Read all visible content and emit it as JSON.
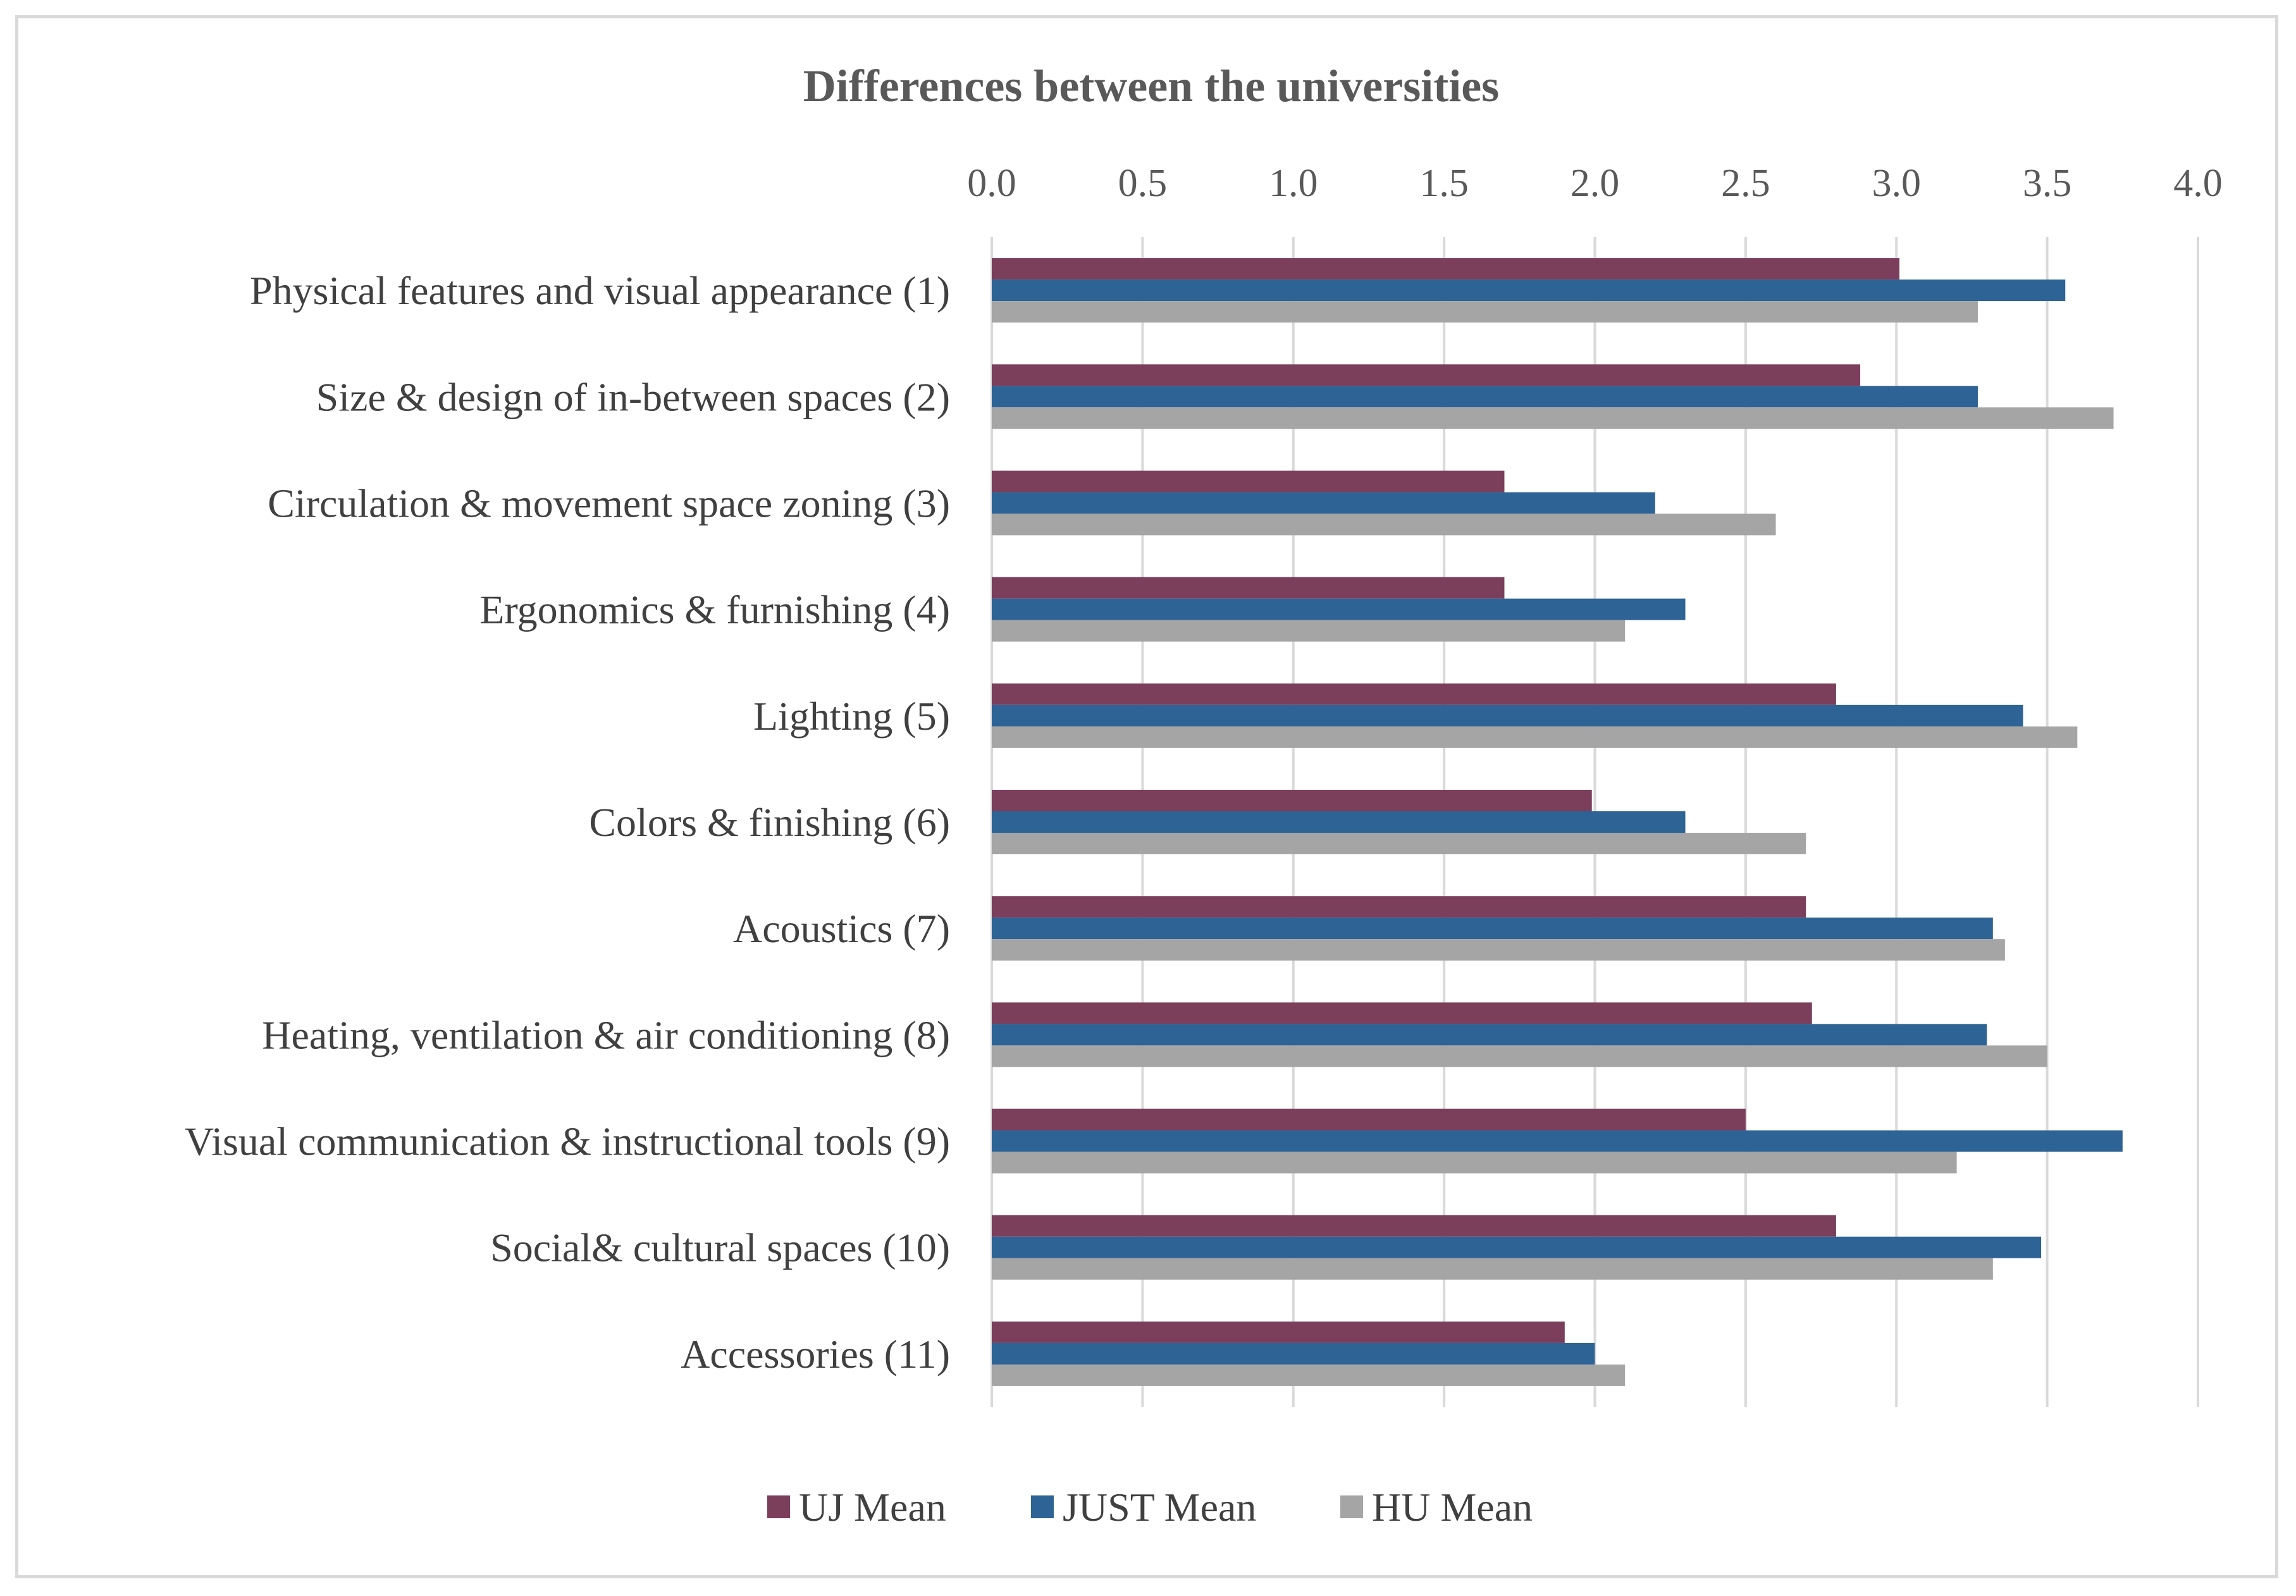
{
  "chart_data": {
    "type": "bar",
    "orientation": "horizontal",
    "title": "Differences between the universities",
    "xlabel": "",
    "ylabel": "",
    "xlim": [
      0,
      4.0
    ],
    "ticks": [
      "0.0",
      "0.5",
      "1.0",
      "1.5",
      "2.0",
      "2.5",
      "3.0",
      "3.5",
      "4.0"
    ],
    "tick_values": [
      0,
      0.5,
      1.0,
      1.5,
      2.0,
      2.5,
      3.0,
      3.5,
      4.0
    ],
    "grid": true,
    "axis_position": "top",
    "legend_position": "bottom",
    "categories": [
      "Physical features and visual appearance (1)",
      "Size & design of in-between spaces (2)",
      "Circulation & movement space zoning (3)",
      "Ergonomics & furnishing (4)",
      "Lighting (5)",
      "Colors & finishing  (6)",
      "Acoustics (7)",
      "Heating, ventilation & air conditioning  (8)",
      "Visual communication & instructional tools (9)",
      "Social& cultural spaces (10)",
      "Accessories (11)"
    ],
    "series": [
      {
        "name": "UJ Mean",
        "color": "#7b3f5c",
        "values": [
          3.01,
          2.88,
          1.7,
          1.7,
          2.8,
          1.99,
          2.7,
          2.72,
          2.5,
          2.8,
          1.9
        ]
      },
      {
        "name": "JUST Mean",
        "color": "#2e6396",
        "values": [
          3.56,
          3.27,
          2.2,
          2.3,
          3.42,
          2.3,
          3.32,
          3.3,
          3.75,
          3.48,
          2.0
        ]
      },
      {
        "name": "HU Mean",
        "color": "#a5a5a5",
        "values": [
          3.27,
          3.72,
          2.6,
          2.1,
          3.6,
          2.7,
          3.36,
          3.5,
          3.2,
          3.32,
          2.1
        ]
      }
    ]
  }
}
